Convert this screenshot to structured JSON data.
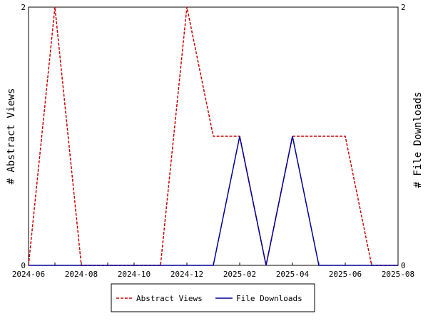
{
  "chart_data": {
    "type": "line",
    "x": [
      "2024-06",
      "2024-07",
      "2024-08",
      "2024-09",
      "2024-10",
      "2024-11",
      "2024-12",
      "2025-01",
      "2025-02",
      "2025-03",
      "2025-04",
      "2025-05",
      "2025-06",
      "2025-07",
      "2025-08"
    ],
    "x_tick_labels": [
      "2024-06",
      "2024-08",
      "2024-10",
      "2024-12",
      "2025-02",
      "2025-04",
      "2025-06",
      "2025-08"
    ],
    "series": [
      {
        "name": "Abstract Views",
        "axis": "left",
        "color": "#cc0000",
        "dash": "dashed",
        "values": [
          0,
          2,
          0,
          0,
          0,
          0,
          2,
          1,
          1,
          0,
          1,
          1,
          1,
          0,
          0
        ]
      },
      {
        "name": "File Downloads",
        "axis": "right",
        "color": "#000099",
        "dash": "solid",
        "values": [
          0,
          0,
          0,
          0,
          0,
          0,
          0,
          0,
          1,
          0,
          1,
          0,
          0,
          0,
          0
        ]
      }
    ],
    "ylabel_left": "# Abstract Views",
    "ylabel_right": "# File Downloads",
    "ylim_left": [
      0,
      2
    ],
    "ylim_right": [
      0,
      2
    ],
    "yticks_left": [
      "0",
      "2"
    ],
    "yticks_right": [
      "0",
      "2"
    ],
    "legend": {
      "placement": "bottom",
      "entries": [
        "Abstract Views",
        "File Downloads"
      ]
    },
    "grid": false
  }
}
